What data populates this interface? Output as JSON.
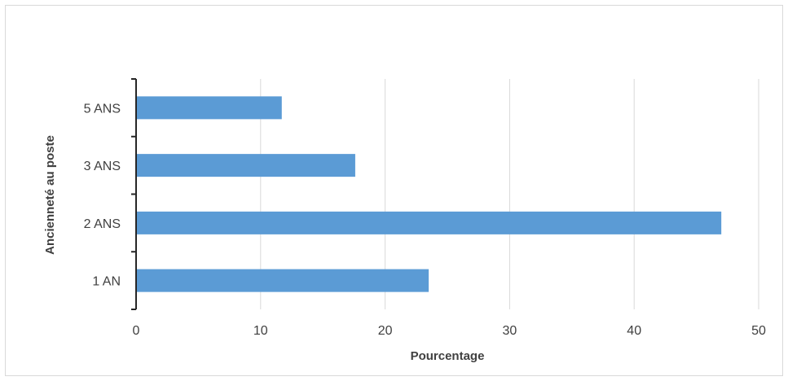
{
  "chart_data": {
    "type": "bar",
    "orientation": "horizontal",
    "categories": [
      "1 AN",
      "2 ANS",
      "3 ANS",
      "5 ANS"
    ],
    "values": [
      23.5,
      47,
      17.6,
      11.7
    ],
    "xlabel": "Pourcentage",
    "ylabel": "Ancienneté au poste",
    "xlim": [
      0,
      50
    ],
    "xticks": [
      "0",
      "10",
      "20",
      "30",
      "40",
      "50"
    ],
    "grid": true,
    "legend": "none",
    "colors": {
      "bar": "#5b9bd5",
      "grid": "#d9d9d9",
      "axis": "#262626",
      "text": "#404040"
    }
  }
}
